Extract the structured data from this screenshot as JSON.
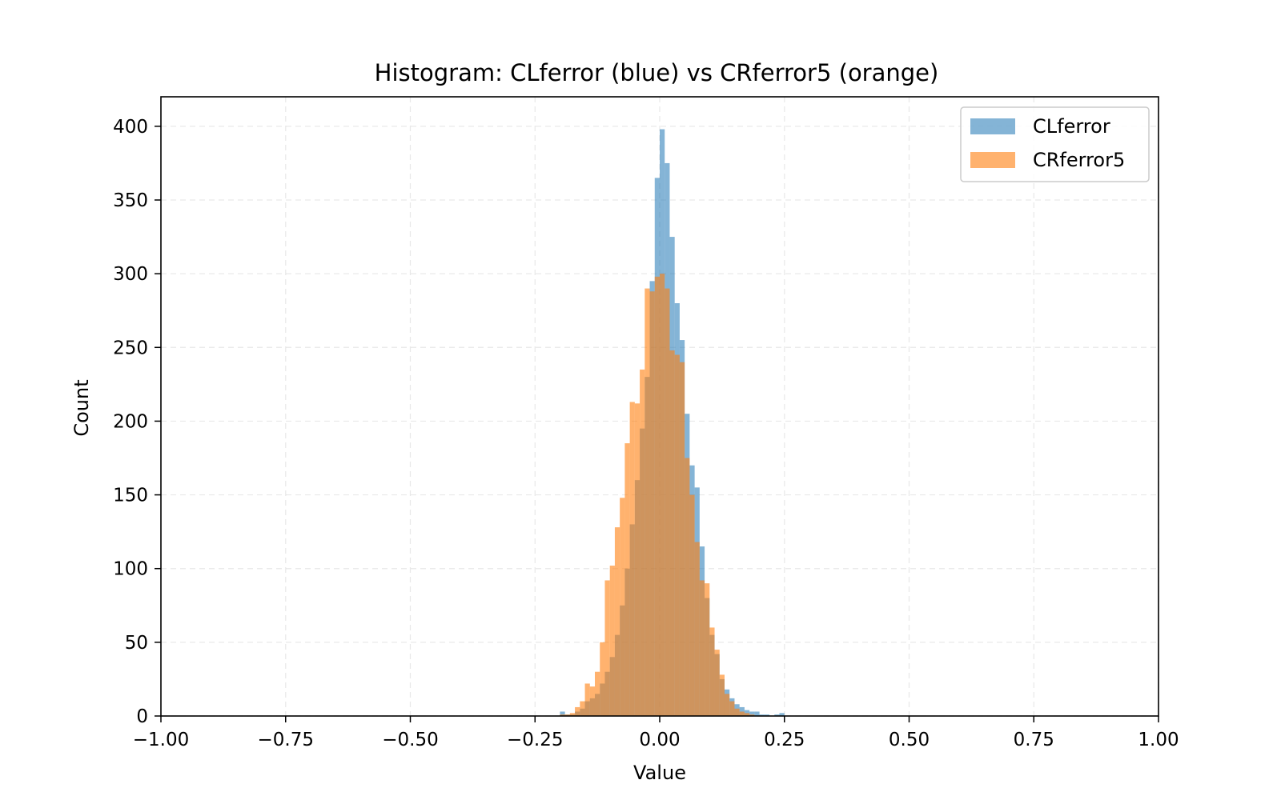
{
  "chart_data": {
    "type": "bar",
    "title": "Histogram: CLferror (blue) vs CRferror5 (orange)",
    "xlabel": "Value",
    "ylabel": "Count",
    "xlim": [
      -1.0,
      1.0
    ],
    "ylim": [
      0,
      420
    ],
    "grid": true,
    "legend_position": "top-right",
    "x_ticks": [
      "−1.00",
      "−0.75",
      "−0.50",
      "−0.25",
      "0.00",
      "0.25",
      "0.50",
      "0.75",
      "1.00"
    ],
    "y_ticks": [
      "0",
      "50",
      "100",
      "150",
      "200",
      "250",
      "300",
      "350",
      "400"
    ],
    "bin_width": 0.01,
    "bin_starts": [
      -0.21,
      -0.2,
      -0.19,
      -0.18,
      -0.17,
      -0.16,
      -0.15,
      -0.14,
      -0.13,
      -0.12,
      -0.11,
      -0.1,
      -0.09,
      -0.08,
      -0.07,
      -0.06,
      -0.05,
      -0.04,
      -0.03,
      -0.02,
      -0.01,
      0.0,
      0.01,
      0.02,
      0.03,
      0.04,
      0.05,
      0.06,
      0.07,
      0.08,
      0.09,
      0.1,
      0.11,
      0.12,
      0.13,
      0.14,
      0.15,
      0.16,
      0.17,
      0.18,
      0.19,
      0.2,
      0.21,
      0.22,
      0.23,
      0.24
    ],
    "series": [
      {
        "name": "CLferror",
        "color": "#1f77b4",
        "alpha": 0.55,
        "values": [
          0,
          3,
          1,
          1,
          3,
          5,
          10,
          12,
          15,
          22,
          30,
          40,
          55,
          75,
          100,
          130,
          160,
          195,
          230,
          295,
          365,
          398,
          375,
          325,
          280,
          255,
          205,
          170,
          155,
          115,
          80,
          55,
          42,
          25,
          18,
          12,
          8,
          6,
          4,
          3,
          3,
          1,
          1,
          0,
          1,
          2
        ]
      },
      {
        "name": "CRferror5",
        "color": "#ff7f0e",
        "alpha": 0.6,
        "values": [
          0,
          1,
          1,
          2,
          6,
          10,
          22,
          20,
          30,
          50,
          92,
          102,
          128,
          148,
          185,
          213,
          212,
          235,
          290,
          288,
          298,
          300,
          290,
          248,
          245,
          240,
          175,
          150,
          118,
          92,
          90,
          60,
          45,
          28,
          15,
          10,
          5,
          3,
          2,
          1,
          0,
          0,
          0,
          0,
          0,
          0
        ]
      }
    ]
  }
}
